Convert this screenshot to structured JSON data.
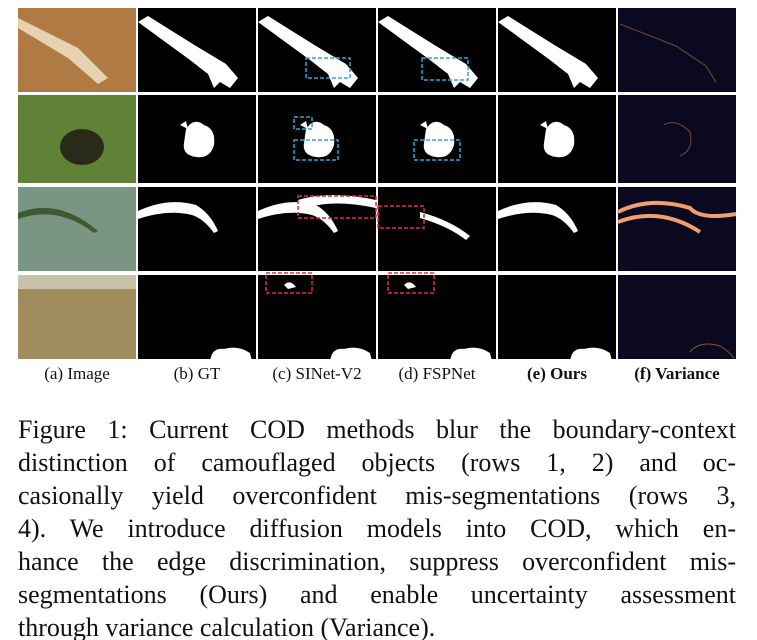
{
  "figure": {
    "column_labels": [
      "(a) Image",
      "(b) GT",
      "(c) SINet-V2",
      "(d) FSPNet",
      "(e) Ours",
      "(f) Variance"
    ],
    "caption_lines": [
      "Figure 1: Current COD methods blur the boundary-context",
      "distinction of camouflaged objects (rows 1, 2) and oc-",
      "casionally yield overconfident mis-segmentations (rows 3,",
      "4). We introduce diffusion models into COD, which en-",
      "hance the edge discrimination, suppress overconfident mis-",
      "segmentations (Ours) and enable uncertainty assessment",
      "through variance calculation (Variance)."
    ]
  }
}
